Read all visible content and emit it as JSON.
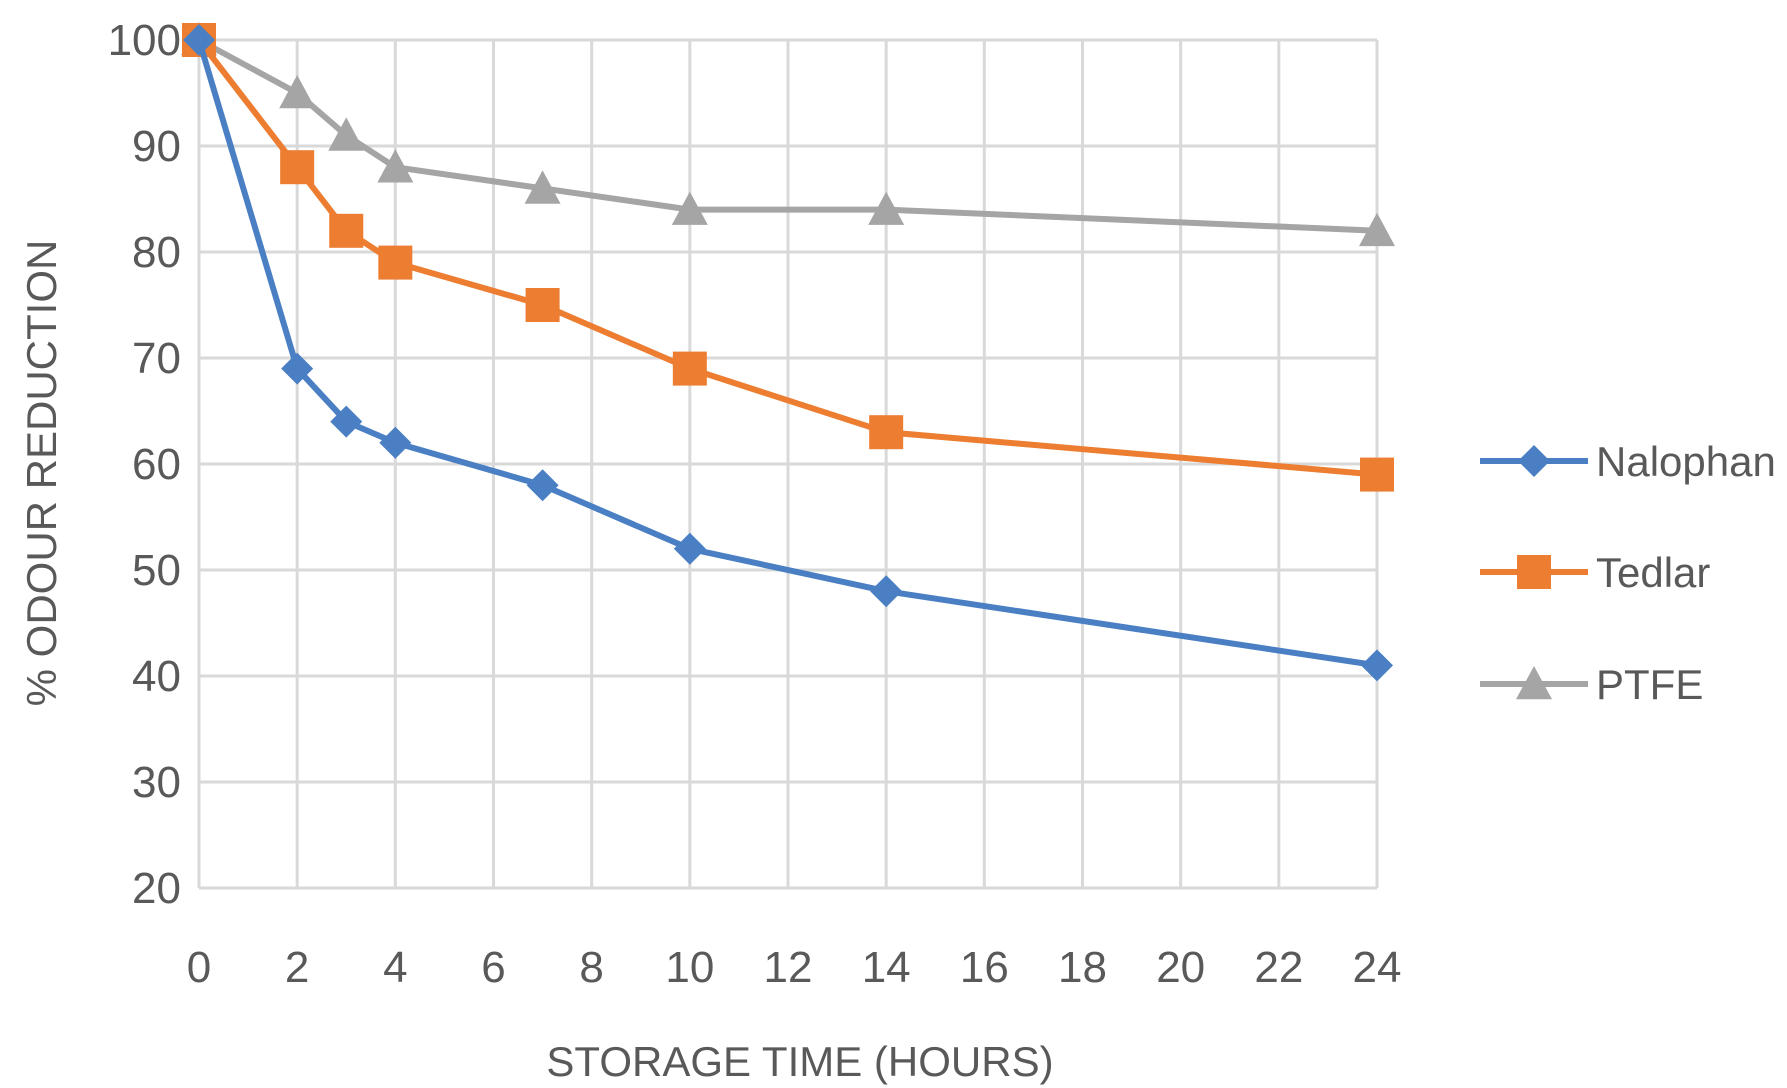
{
  "chart_data": {
    "type": "line",
    "title": "",
    "xlabel": "STORAGE TIME (HOURS)",
    "ylabel": "% ODOUR REDUCTION",
    "x_ticks": [
      0,
      2,
      4,
      6,
      8,
      10,
      12,
      14,
      16,
      18,
      20,
      22,
      24
    ],
    "y_ticks": [
      20,
      30,
      40,
      50,
      60,
      70,
      80,
      90,
      100
    ],
    "xlim": [
      0,
      24
    ],
    "ylim": [
      20,
      100
    ],
    "grid": true,
    "legend_position": "right",
    "series": [
      {
        "name": "Nalophan",
        "color": "#4a7fc4",
        "marker": "diamond",
        "x": [
          0,
          2,
          3,
          4,
          7,
          10,
          14,
          24
        ],
        "y": [
          100,
          69,
          64,
          62,
          58,
          52,
          48,
          41
        ]
      },
      {
        "name": "Tedlar",
        "color": "#ed7d31",
        "marker": "square",
        "x": [
          0,
          2,
          3,
          4,
          7,
          10,
          14,
          24
        ],
        "y": [
          100,
          88,
          82,
          79,
          75,
          69,
          63,
          59
        ]
      },
      {
        "name": "PTFE",
        "color": "#a5a5a5",
        "marker": "triangle",
        "x": [
          0,
          2,
          3,
          4,
          7,
          10,
          14,
          24
        ],
        "y": [
          100,
          95,
          91,
          88,
          86,
          84,
          84,
          82
        ]
      }
    ]
  }
}
